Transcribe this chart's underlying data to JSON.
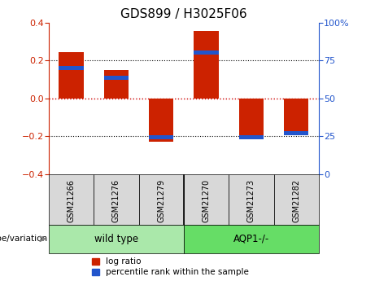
{
  "title": "GDS899 / H3025F06",
  "samples": [
    "GSM21266",
    "GSM21276",
    "GSM21279",
    "GSM21270",
    "GSM21273",
    "GSM21282"
  ],
  "log_ratio": [
    0.245,
    0.15,
    -0.23,
    0.355,
    -0.21,
    -0.175
  ],
  "percentile_rank": [
    0.16,
    0.11,
    -0.205,
    0.24,
    -0.205,
    -0.185
  ],
  "ylim": [
    -0.4,
    0.4
  ],
  "right_ylim": [
    0,
    100
  ],
  "right_yticks": [
    0,
    25,
    50,
    75,
    100
  ],
  "right_yticklabels": [
    "0",
    "25",
    "50",
    "75",
    "100%"
  ],
  "left_yticks": [
    -0.4,
    -0.2,
    0.0,
    0.2,
    0.4
  ],
  "groups": [
    {
      "label": "wild type",
      "indices": [
        0,
        1,
        2
      ],
      "color": "#aae8aa"
    },
    {
      "label": "AQP1-/-",
      "indices": [
        3,
        4,
        5
      ],
      "color": "#66dd66"
    }
  ],
  "group_label_prefix": "genotype/variation",
  "bar_color_red": "#cc2200",
  "bar_color_blue": "#2255cc",
  "bar_width": 0.55,
  "background_plot": "#ffffff",
  "background_label": "#d8d8d8",
  "hline0_color": "#cc0000",
  "hline_color": "#000000",
  "legend_items": [
    "log ratio",
    "percentile rank within the sample"
  ],
  "title_fontsize": 11,
  "tick_fontsize": 8,
  "label_fontsize": 8
}
